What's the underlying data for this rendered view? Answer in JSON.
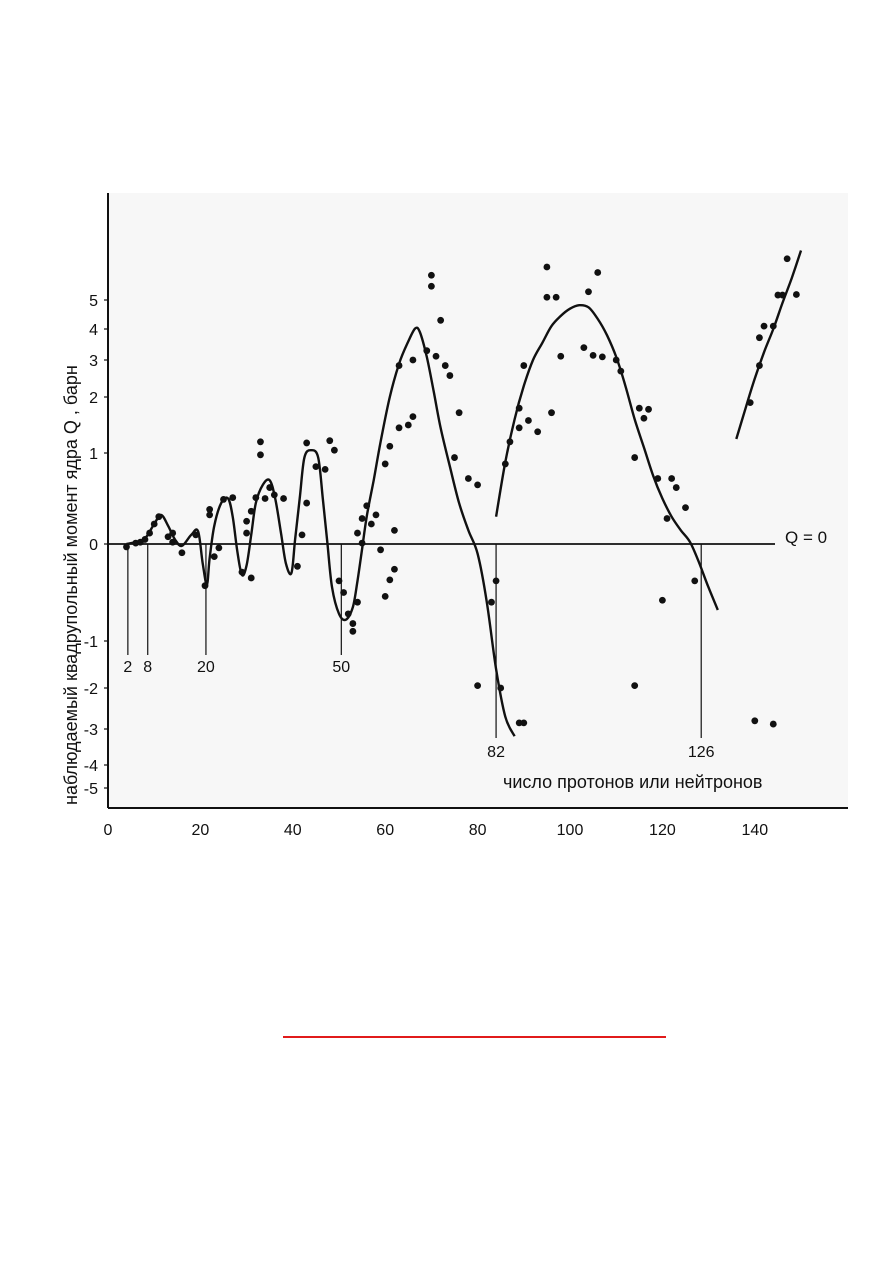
{
  "chart_data": {
    "type": "scatter",
    "xlabel": "число протонов или нейтронов",
    "ylabel": "наблюдаемый квадрупольный момент ядра   Q ,   барн",
    "xlim": [
      0,
      160
    ],
    "x_ticks": [
      "0",
      "20",
      "40",
      "60",
      "80",
      "100",
      "120",
      "140"
    ],
    "y_ticks": [
      "5",
      "4",
      "3",
      "2",
      "1",
      "0",
      "-1",
      "-2",
      "-3",
      "-4",
      "-5"
    ],
    "y_scale": "nonlinear (compressed toward ±5)",
    "reference_line_label": "Q = 0",
    "magic_numbers": [
      "2",
      "8",
      "20",
      "50",
      "82",
      "126"
    ],
    "points": [
      [
        4,
        -0.03
      ],
      [
        6,
        0.01
      ],
      [
        7,
        0.02
      ],
      [
        8,
        0.05
      ],
      [
        9,
        0.12
      ],
      [
        10,
        0.22
      ],
      [
        11,
        0.3
      ],
      [
        13,
        0.08
      ],
      [
        14,
        0.12
      ],
      [
        14,
        0.02
      ],
      [
        16,
        -0.09
      ],
      [
        19,
        0.1
      ],
      [
        21,
        -0.43
      ],
      [
        22,
        0.32
      ],
      [
        22,
        0.38
      ],
      [
        23,
        -0.13
      ],
      [
        24,
        -0.04
      ],
      [
        25,
        0.49
      ],
      [
        27,
        0.51
      ],
      [
        29,
        -0.29
      ],
      [
        30,
        0.12
      ],
      [
        30,
        0.25
      ],
      [
        31,
        0.36
      ],
      [
        31,
        -0.35
      ],
      [
        32,
        0.51
      ],
      [
        33,
        0.98
      ],
      [
        33,
        1.2
      ],
      [
        34,
        0.5
      ],
      [
        35,
        0.62
      ],
      [
        36,
        0.54
      ],
      [
        38,
        0.5
      ],
      [
        41,
        -0.23
      ],
      [
        42,
        0.1
      ],
      [
        43,
        0.45
      ],
      [
        43,
        1.18
      ],
      [
        45,
        0.85
      ],
      [
        47,
        0.82
      ],
      [
        48,
        1.22
      ],
      [
        49,
        1.05
      ],
      [
        50,
        -0.38
      ],
      [
        51,
        -0.5
      ],
      [
        52,
        -0.72
      ],
      [
        53,
        -0.82
      ],
      [
        53,
        -0.9
      ],
      [
        54,
        -0.6
      ],
      [
        54,
        0.12
      ],
      [
        55,
        0.01
      ],
      [
        55,
        0.28
      ],
      [
        56,
        0.42
      ],
      [
        57,
        0.22
      ],
      [
        58,
        0.32
      ],
      [
        59,
        -0.06
      ],
      [
        60,
        -0.54
      ],
      [
        60,
        0.88
      ],
      [
        61,
        -0.37
      ],
      [
        61,
        1.12
      ],
      [
        62,
        0.15
      ],
      [
        62,
        -0.26
      ],
      [
        63,
        1.45
      ],
      [
        63,
        2.85
      ],
      [
        65,
        1.5
      ],
      [
        66,
        3.0
      ],
      [
        66,
        1.65
      ],
      [
        69,
        3.3
      ],
      [
        70,
        5.9
      ],
      [
        70,
        5.5
      ],
      [
        71,
        3.12
      ],
      [
        72,
        4.3
      ],
      [
        73,
        2.85
      ],
      [
        74,
        2.58
      ],
      [
        75,
        0.95
      ],
      [
        76,
        1.72
      ],
      [
        78,
        0.72
      ],
      [
        80,
        -1.95
      ],
      [
        80,
        0.65
      ],
      [
        83,
        -0.6
      ],
      [
        84,
        -0.38
      ],
      [
        85,
        -2.0
      ],
      [
        86,
        0.88
      ],
      [
        87,
        1.2
      ],
      [
        89,
        -2.85
      ],
      [
        89,
        1.45
      ],
      [
        89,
        1.8
      ],
      [
        90,
        -2.85
      ],
      [
        90,
        2.85
      ],
      [
        91,
        1.58
      ],
      [
        93,
        1.38
      ],
      [
        95,
        6.2
      ],
      [
        95,
        5.1
      ],
      [
        96,
        1.72
      ],
      [
        97,
        5.1
      ],
      [
        98,
        3.12
      ],
      [
        103,
        3.4
      ],
      [
        104,
        5.3
      ],
      [
        105,
        3.15
      ],
      [
        106,
        6.0
      ],
      [
        107,
        3.1
      ],
      [
        110,
        3.0
      ],
      [
        111,
        2.7
      ],
      [
        114,
        -1.95
      ],
      [
        114,
        0.95
      ],
      [
        115,
        1.8
      ],
      [
        116,
        1.62
      ],
      [
        117,
        1.78
      ],
      [
        119,
        0.72
      ],
      [
        120,
        -0.58
      ],
      [
        121,
        0.28
      ],
      [
        122,
        0.72
      ],
      [
        123,
        0.62
      ],
      [
        125,
        0.4
      ],
      [
        127,
        -0.38
      ],
      [
        139,
        1.9
      ],
      [
        140,
        -2.8
      ],
      [
        141,
        2.85
      ],
      [
        141,
        3.72
      ],
      [
        142,
        4.1
      ],
      [
        144,
        -2.88
      ],
      [
        144,
        4.1
      ],
      [
        145,
        5.18
      ],
      [
        146,
        5.18
      ],
      [
        147,
        6.5
      ],
      [
        149,
        5.2
      ]
    ],
    "fit_curves": [
      {
        "points": [
          [
            4,
            0
          ],
          [
            6,
            0.02
          ],
          [
            8,
            0.06
          ],
          [
            10,
            0.22
          ],
          [
            11.5,
            0.32
          ],
          [
            13,
            0.2
          ],
          [
            14.5,
            0.05
          ],
          [
            16,
            -0.02
          ],
          [
            18,
            0.1
          ],
          [
            19.5,
            0.14
          ],
          [
            20.5,
            -0.2
          ],
          [
            21.4,
            -0.42
          ],
          [
            22,
            -0.15
          ],
          [
            23,
            0.2
          ],
          [
            24.5,
            0.45
          ],
          [
            26,
            0.5
          ],
          [
            27,
            0.3
          ],
          [
            28,
            -0.08
          ],
          [
            29,
            -0.32
          ],
          [
            30,
            -0.22
          ],
          [
            31,
            0.1
          ],
          [
            32,
            0.45
          ],
          [
            33.5,
            0.65
          ],
          [
            35,
            0.7
          ],
          [
            36.2,
            0.5
          ],
          [
            37.5,
            0.1
          ],
          [
            38.5,
            -0.2
          ],
          [
            39.7,
            -0.3
          ],
          [
            40.5,
            0.05
          ],
          [
            41.5,
            0.5
          ],
          [
            42.5,
            0.95
          ],
          [
            44,
            1.05
          ],
          [
            45.5,
            0.95
          ],
          [
            46.5,
            0.5
          ],
          [
            47.5,
            0
          ],
          [
            48.5,
            -0.45
          ],
          [
            50,
            -0.72
          ],
          [
            51.5,
            -0.78
          ],
          [
            53,
            -0.65
          ],
          [
            54,
            -0.38
          ],
          [
            55,
            -0.05
          ],
          [
            56,
            0.3
          ],
          [
            57.5,
            0.7
          ],
          [
            59,
            1.2
          ],
          [
            61,
            2.0
          ],
          [
            63,
            2.9
          ],
          [
            65,
            3.6
          ],
          [
            66.5,
            4.02
          ],
          [
            67.5,
            3.9
          ],
          [
            69,
            3.1
          ],
          [
            70.5,
            2.15
          ],
          [
            72,
            1.45
          ],
          [
            74,
            0.85
          ],
          [
            76,
            0.45
          ],
          [
            78,
            0.15
          ],
          [
            80,
            -0.1
          ],
          [
            82,
            -0.6
          ],
          [
            84,
            -1.6
          ],
          [
            86,
            -2.7
          ],
          [
            88,
            -3.2
          ]
        ]
      },
      {
        "points": [
          [
            84,
            0.3
          ],
          [
            86,
            0.9
          ],
          [
            88,
            1.6
          ],
          [
            90,
            2.3
          ],
          [
            92,
            3.0
          ],
          [
            94,
            3.55
          ],
          [
            96,
            4.1
          ],
          [
            98,
            4.45
          ],
          [
            100,
            4.7
          ],
          [
            102,
            4.82
          ],
          [
            104,
            4.75
          ],
          [
            106,
            4.35
          ],
          [
            108,
            3.8
          ],
          [
            110,
            3.1
          ],
          [
            112,
            2.3
          ],
          [
            114,
            1.6
          ],
          [
            116,
            1.1
          ],
          [
            118,
            0.75
          ],
          [
            120,
            0.5
          ],
          [
            122,
            0.3
          ],
          [
            124,
            0.15
          ],
          [
            126,
            0.02
          ],
          [
            128,
            -0.2
          ],
          [
            130,
            -0.45
          ],
          [
            132,
            -0.68
          ]
        ]
      },
      {
        "points": [
          [
            136,
            1.25
          ],
          [
            138,
            1.8
          ],
          [
            140,
            2.5
          ],
          [
            142,
            3.25
          ],
          [
            144,
            4.0
          ],
          [
            146,
            4.9
          ],
          [
            148,
            5.8
          ],
          [
            150,
            6.8
          ]
        ]
      }
    ]
  },
  "page_rule": {
    "color": "#e11b1b"
  }
}
